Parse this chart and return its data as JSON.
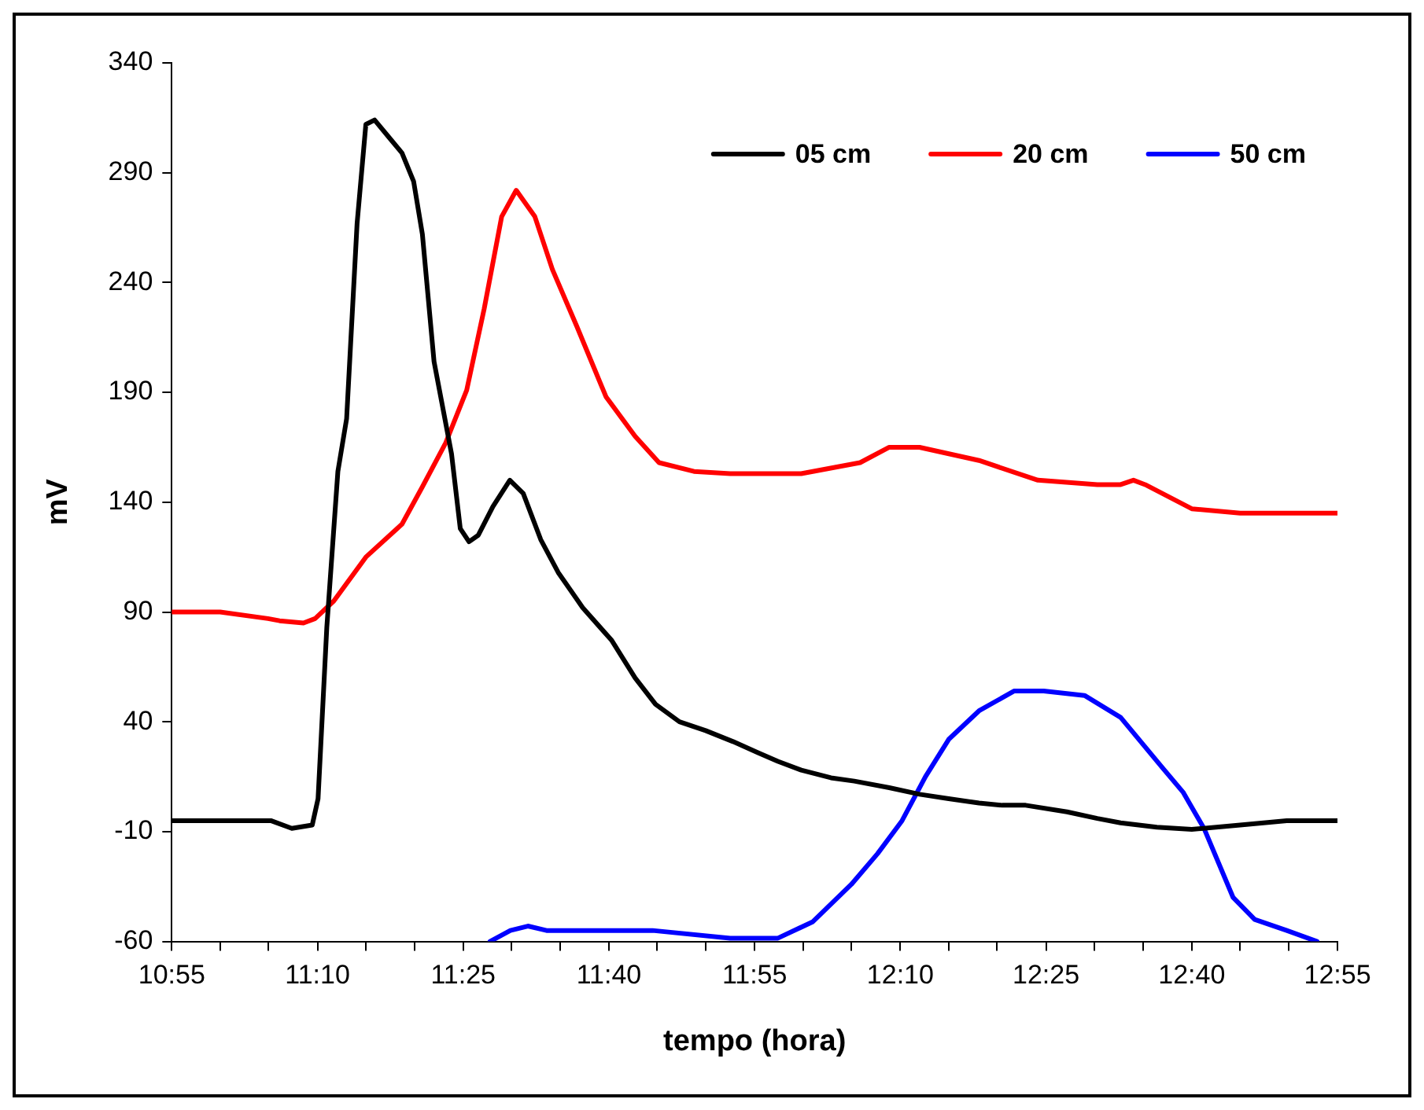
{
  "chart_data": {
    "type": "line",
    "xlabel": "tempo (hora)",
    "ylabel": "mV",
    "xlim": [
      10.917,
      12.917
    ],
    "ylim": [
      -60,
      340
    ],
    "xticks": [
      {
        "value": 10.917,
        "label": "10:55"
      },
      {
        "value": 11.0,
        "label": null
      },
      {
        "value": 11.083,
        "label": null
      },
      {
        "value": 11.167,
        "label": "11:10"
      },
      {
        "value": 11.25,
        "label": null
      },
      {
        "value": 11.333,
        "label": null
      },
      {
        "value": 11.417,
        "label": "11:25"
      },
      {
        "value": 11.5,
        "label": null
      },
      {
        "value": 11.583,
        "label": null
      },
      {
        "value": 11.667,
        "label": "11:40"
      },
      {
        "value": 11.75,
        "label": null
      },
      {
        "value": 11.833,
        "label": null
      },
      {
        "value": 11.917,
        "label": "11:55"
      },
      {
        "value": 12.0,
        "label": null
      },
      {
        "value": 12.083,
        "label": null
      },
      {
        "value": 12.167,
        "label": "12:10"
      },
      {
        "value": 12.25,
        "label": null
      },
      {
        "value": 12.333,
        "label": null
      },
      {
        "value": 12.417,
        "label": "12:25"
      },
      {
        "value": 12.5,
        "label": null
      },
      {
        "value": 12.583,
        "label": null
      },
      {
        "value": 12.667,
        "label": "12:40"
      },
      {
        "value": 12.75,
        "label": null
      },
      {
        "value": 12.833,
        "label": null
      },
      {
        "value": 12.917,
        "label": "12:55"
      }
    ],
    "yticks": [
      -60,
      -10,
      40,
      90,
      140,
      190,
      240,
      290,
      340
    ],
    "grid": false,
    "legend": "top right",
    "marker": "none",
    "line_style": "solid",
    "series": [
      {
        "name": "05 cm",
        "color": "#000000",
        "x": [
          10.917,
          11.087,
          11.123,
          11.158,
          11.168,
          11.183,
          11.202,
          11.217,
          11.235,
          11.25,
          11.265,
          11.29,
          11.312,
          11.332,
          11.347,
          11.367,
          11.397,
          11.412,
          11.427,
          11.443,
          11.468,
          11.497,
          11.52,
          11.55,
          11.58,
          11.622,
          11.672,
          11.712,
          11.747,
          11.788,
          11.833,
          11.88,
          11.922,
          11.957,
          11.997,
          12.048,
          12.088,
          12.148,
          12.2,
          12.25,
          12.302,
          12.342,
          12.382,
          12.453,
          12.505,
          12.545,
          12.607,
          12.667,
          12.75,
          12.83,
          12.917
        ],
        "values": [
          -5,
          -5,
          -8.5,
          -7,
          5,
          83,
          154,
          178,
          267,
          312,
          314,
          306,
          299,
          286,
          262,
          204,
          162,
          128,
          122,
          125,
          138,
          150,
          144,
          123,
          108,
          92,
          77,
          60,
          48,
          40,
          36,
          31,
          26,
          22,
          18,
          14.5,
          13,
          10,
          7,
          5,
          3,
          2,
          2,
          -1,
          -4,
          -6,
          -8,
          -9,
          -7,
          -5,
          -5
        ]
      },
      {
        "name": "20 cm",
        "color": "#ff0000",
        "x": [
          10.917,
          11.0,
          11.082,
          11.102,
          11.143,
          11.163,
          11.195,
          11.25,
          11.312,
          11.347,
          11.387,
          11.423,
          11.453,
          11.483,
          11.508,
          11.54,
          11.57,
          11.612,
          11.662,
          11.712,
          11.753,
          11.813,
          11.875,
          11.997,
          12.098,
          12.148,
          12.2,
          12.302,
          12.403,
          12.505,
          12.545,
          12.567,
          12.587,
          12.667,
          12.75,
          12.917
        ],
        "values": [
          90,
          90,
          87,
          86,
          85,
          87,
          95,
          115,
          130,
          147,
          167,
          191,
          228,
          270,
          282,
          270,
          246,
          220,
          188,
          170,
          158,
          154,
          153,
          153,
          158,
          165,
          165,
          159,
          150,
          148,
          148,
          150,
          148,
          137,
          135,
          135
        ]
      },
      {
        "name": "50 cm",
        "color": "#0000ff",
        "x": [
          11.463,
          11.498,
          11.528,
          11.56,
          11.742,
          11.875,
          11.957,
          12.017,
          12.083,
          12.128,
          12.17,
          12.21,
          12.25,
          12.302,
          12.362,
          12.413,
          12.483,
          12.545,
          12.617,
          12.652,
          12.688,
          12.738,
          12.775,
          12.83,
          12.882
        ],
        "values": [
          -60,
          -55,
          -53,
          -55,
          -55,
          -58.5,
          -58.5,
          -51,
          -34,
          -20,
          -5,
          15,
          32,
          45,
          54,
          54,
          52,
          42,
          19,
          8,
          -8.5,
          -40,
          -50,
          -55,
          -60
        ]
      }
    ]
  }
}
